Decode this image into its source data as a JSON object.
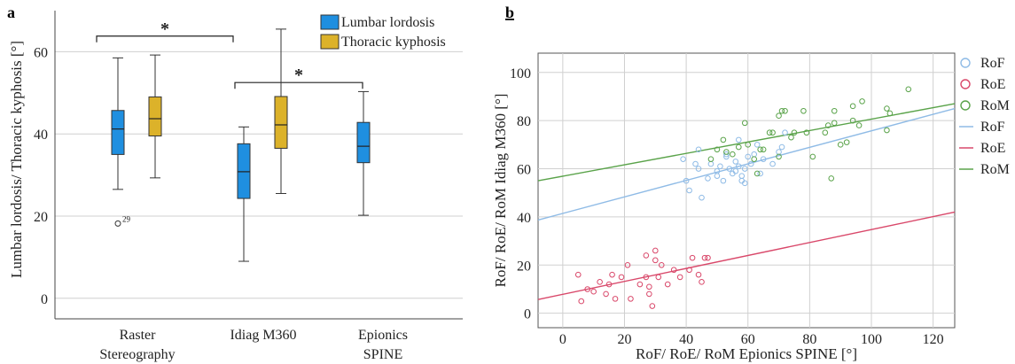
{
  "chart_data": [
    {
      "panel_label": "a",
      "type": "box",
      "ylabel": "Lumbar lordosis/ Thoracic kyphosis [°]",
      "ylim": [
        -5,
        70
      ],
      "yticks": [
        0,
        20,
        40,
        60
      ],
      "categories": [
        {
          "lines": [
            "Raster",
            "Stereography"
          ]
        },
        {
          "lines": [
            "Idiag M360"
          ]
        },
        {
          "lines": [
            "Epionics",
            "SPINE"
          ]
        }
      ],
      "series": [
        {
          "name": "Lumbar lordosis",
          "color": "#1f8fe0"
        },
        {
          "name": "Thoracic kyphosis",
          "color": "#dcb22a"
        }
      ],
      "boxes": [
        {
          "category": 0,
          "series": 0,
          "min": 26.5,
          "q1": 35,
          "median": 41.2,
          "q3": 45.7,
          "max": 58.5
        },
        {
          "category": 0,
          "series": 1,
          "min": 29.3,
          "q1": 39.5,
          "median": 43.7,
          "q3": 49,
          "max": 59.2
        },
        {
          "category": 1,
          "series": 0,
          "min": 9,
          "q1": 24.3,
          "median": 30.8,
          "q3": 37.6,
          "max": 41.7
        },
        {
          "category": 1,
          "series": 1,
          "min": 25.5,
          "q1": 36.5,
          "median": 42.2,
          "q3": 49.1,
          "max": 65.5
        },
        {
          "category": 2,
          "series": 0,
          "min": 20.2,
          "q1": 33,
          "median": 37,
          "q3": 42.8,
          "max": 50.3
        }
      ],
      "outliers": [
        {
          "category": 0,
          "series": 0,
          "value": 18.2,
          "label": "29"
        }
      ],
      "significance": [
        {
          "from_category": 0,
          "to_category": 1,
          "y": 63.8,
          "label": "*"
        },
        {
          "from_category": 1,
          "to_category": 2,
          "y": 52.5,
          "label": "*"
        }
      ],
      "grid": true,
      "legend": "top-right"
    },
    {
      "panel_label": "b",
      "type": "scatter",
      "xlabel": "RoF/ RoE/ RoM Epionics SPINE [°]",
      "ylabel": "RoF/ RoE/ RoM Idiag M360 [°]",
      "xlim": [
        -8,
        127
      ],
      "ylim": [
        -6,
        108
      ],
      "xticks": [
        0,
        20,
        40,
        60,
        80,
        100,
        120
      ],
      "yticks": [
        0,
        20,
        40,
        60,
        80,
        100
      ],
      "grid": true,
      "legend": "right",
      "legend_entries": [
        {
          "label": "RoF",
          "kind": "marker",
          "color": "#8fbbe6"
        },
        {
          "label": "RoE",
          "kind": "marker",
          "color": "#d9486a"
        },
        {
          "label": "RoM",
          "kind": "marker",
          "color": "#5aa34a"
        },
        {
          "label": "RoF",
          "kind": "line",
          "color": "#8fbbe6"
        },
        {
          "label": "RoE",
          "kind": "line",
          "color": "#d9486a"
        },
        {
          "label": "RoM",
          "kind": "line",
          "color": "#5aa34a"
        }
      ],
      "series": [
        {
          "name": "RoF",
          "color": "#8fbbe6",
          "points": [
            [
              40,
              55
            ],
            [
              41,
              51
            ],
            [
              43,
              62
            ],
            [
              44,
              60
            ],
            [
              45,
              48
            ],
            [
              47,
              56
            ],
            [
              48,
              62
            ],
            [
              50,
              59
            ],
            [
              51,
              61
            ],
            [
              52,
              55
            ],
            [
              53,
              66
            ],
            [
              54,
              60
            ],
            [
              55,
              58
            ],
            [
              56,
              63
            ],
            [
              56,
              59
            ],
            [
              57,
              72
            ],
            [
              57,
              61
            ],
            [
              58,
              57
            ],
            [
              58,
              55
            ],
            [
              59,
              54
            ],
            [
              60,
              65
            ],
            [
              61,
              62
            ],
            [
              62,
              66
            ],
            [
              63,
              70
            ],
            [
              64,
              58
            ],
            [
              65,
              64
            ],
            [
              68,
              62
            ],
            [
              70,
              67
            ],
            [
              71,
              69
            ],
            [
              72,
              75
            ],
            [
              39,
              64
            ],
            [
              44,
              68
            ],
            [
              50,
              57
            ],
            [
              53,
              65
            ],
            [
              59,
              60
            ]
          ],
          "fit": [
            [
              -8,
              38.7
            ],
            [
              127,
              85
            ]
          ]
        },
        {
          "name": "RoE",
          "color": "#d9486a",
          "points": [
            [
              5,
              16
            ],
            [
              6,
              5
            ],
            [
              8,
              10
            ],
            [
              10,
              9
            ],
            [
              12,
              13
            ],
            [
              14,
              8
            ],
            [
              15,
              12
            ],
            [
              16,
              16
            ],
            [
              17,
              6
            ],
            [
              19,
              15
            ],
            [
              21,
              20
            ],
            [
              22,
              6
            ],
            [
              25,
              12
            ],
            [
              27,
              24
            ],
            [
              27,
              15
            ],
            [
              28,
              11
            ],
            [
              28,
              8
            ],
            [
              29,
              3
            ],
            [
              30,
              26
            ],
            [
              30,
              22
            ],
            [
              31,
              15
            ],
            [
              32,
              20
            ],
            [
              34,
              12
            ],
            [
              36,
              18
            ],
            [
              38,
              15
            ],
            [
              41,
              18
            ],
            [
              42,
              23
            ],
            [
              44,
              16
            ],
            [
              45,
              13
            ],
            [
              46,
              23
            ],
            [
              47,
              23
            ]
          ],
          "fit": [
            [
              -8,
              5.7
            ],
            [
              127,
              42
            ]
          ]
        },
        {
          "name": "RoM",
          "color": "#5aa34a",
          "points": [
            [
              48,
              64
            ],
            [
              50,
              68
            ],
            [
              52,
              72
            ],
            [
              53,
              67
            ],
            [
              55,
              66
            ],
            [
              57,
              69
            ],
            [
              59,
              79
            ],
            [
              60,
              70
            ],
            [
              62,
              64
            ],
            [
              63,
              58
            ],
            [
              64,
              68
            ],
            [
              65,
              68
            ],
            [
              67,
              75
            ],
            [
              68,
              75
            ],
            [
              70,
              65
            ],
            [
              70,
              82
            ],
            [
              71,
              84
            ],
            [
              72,
              84
            ],
            [
              74,
              73
            ],
            [
              75,
              75
            ],
            [
              78,
              84
            ],
            [
              79,
              75
            ],
            [
              81,
              65
            ],
            [
              85,
              75
            ],
            [
              86,
              78
            ],
            [
              87,
              56
            ],
            [
              88,
              79
            ],
            [
              88,
              84
            ],
            [
              90,
              70
            ],
            [
              92,
              71
            ],
            [
              94,
              80
            ],
            [
              94,
              86
            ],
            [
              96,
              78
            ],
            [
              97,
              88
            ],
            [
              105,
              76
            ],
            [
              106,
              83
            ],
            [
              112,
              93
            ],
            [
              105,
              85
            ]
          ],
          "fit": [
            [
              -8,
              55
            ],
            [
              127,
              87
            ]
          ]
        }
      ]
    }
  ]
}
